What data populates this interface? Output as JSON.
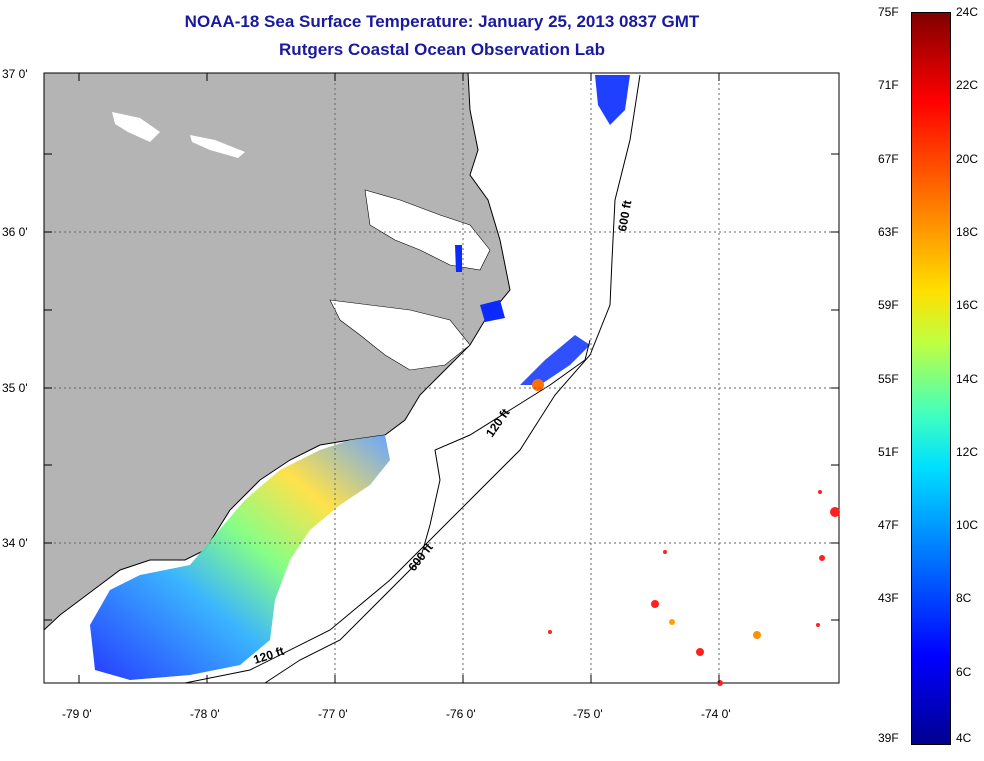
{
  "title": "NOAA-18 Sea Surface Temperature:  January 25, 2013 0837 GMT",
  "subtitle": "Rutgers Coastal Ocean Observation Lab",
  "map": {
    "lat_labels": [
      "37 0'",
      "36 0'",
      "35 0'",
      "34 0'"
    ],
    "lon_labels": [
      "-79 0'",
      "-78 0'",
      "-77 0'",
      "-76 0'",
      "-75 0'",
      "-74 0'"
    ],
    "contour_labels": [
      "600 ft",
      "120 ft",
      "600 ft",
      "120 ft"
    ],
    "land_color": "#b4b4b4",
    "grid": "dotted"
  },
  "colorbar": {
    "fahrenheit": [
      "75F",
      "71F",
      "67F",
      "63F",
      "59F",
      "55F",
      "51F",
      "47F",
      "43F",
      "39F"
    ],
    "celsius": [
      "24C",
      "22C",
      "20C",
      "18C",
      "16C",
      "14C",
      "12C",
      "10C",
      "8C",
      "6C",
      "4C"
    ]
  }
}
